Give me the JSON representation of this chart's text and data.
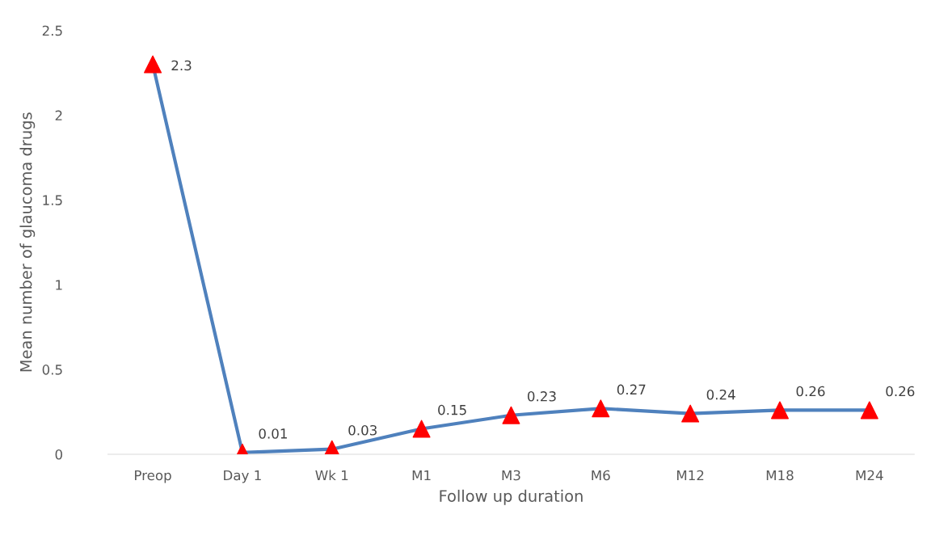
{
  "chart_data": {
    "type": "line",
    "xlabel": "Follow up duration",
    "ylabel": "Mean number of glaucoma drugs",
    "categories": [
      "Preop",
      "Day 1",
      "Wk 1",
      "M1",
      "M3",
      "M6",
      "M12",
      "M18",
      "M24"
    ],
    "series": [
      {
        "color": "#4f81bd",
        "colors": [
          "#ff0000",
          "#ff0000",
          "#ff0000",
          "#ff0000",
          "#ff0000",
          "#ff0000",
          "#ff0000",
          "#ff0000",
          "#ff0000"
        ],
        "values": [
          2.3,
          0.01,
          0.03,
          0.15,
          0.23,
          0.27,
          0.24,
          0.26,
          0.26
        ]
      }
    ],
    "ylim": [
      0,
      2.5
    ],
    "yticks": [
      0,
      0.5,
      1,
      1.5,
      2,
      2.5
    ],
    "marker": "triangle",
    "line_style": "solid",
    "data_labels": true,
    "grid": false,
    "legend": false
  }
}
